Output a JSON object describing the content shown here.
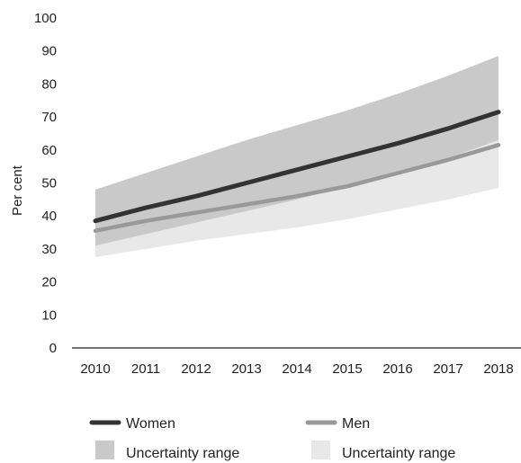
{
  "chart_data": {
    "type": "area",
    "title": "",
    "xlabel": "",
    "ylabel": "Per cent",
    "ylim": [
      0,
      100
    ],
    "yticks": [
      0,
      10,
      20,
      30,
      40,
      50,
      60,
      70,
      80,
      90,
      100
    ],
    "x": [
      2010,
      2011,
      2012,
      2013,
      2014,
      2015,
      2016,
      2017,
      2018
    ],
    "x_labels": [
      "2010",
      "2011",
      "2012",
      "2013",
      "2014",
      "2015",
      "2016",
      "2017",
      "2018"
    ],
    "grid": false,
    "legend_position": "bottom",
    "series": [
      {
        "name": "Women",
        "kind": "line",
        "color": "#333333",
        "values": [
          38.5,
          42.5,
          46,
          50,
          54,
          58,
          62,
          66.5,
          71.5
        ]
      },
      {
        "name": "Men",
        "kind": "line",
        "color": "#999999",
        "values": [
          35.5,
          38.5,
          41,
          43.5,
          46,
          49,
          53,
          57,
          61.5
        ]
      }
    ],
    "bands": [
      {
        "name": "Uncertainty range",
        "for": "Women",
        "color": "#c9c9c9",
        "lower": [
          31,
          34.5,
          38,
          41.5,
          45,
          49,
          53,
          57.5,
          63
        ],
        "upper": [
          48,
          53,
          58,
          63,
          67.5,
          72,
          77,
          82.5,
          88.5
        ]
      },
      {
        "name": "Uncertainty range",
        "for": "Men",
        "color": "#e8e8e8",
        "lower": [
          27.5,
          30,
          32.5,
          34.5,
          36.5,
          39,
          42,
          45,
          48.5
        ],
        "upper": [
          45,
          48.5,
          52,
          55,
          58.5,
          62,
          67,
          72,
          78
        ]
      }
    ],
    "legend": [
      {
        "label": "Women",
        "swatch": "line",
        "color": "#333333"
      },
      {
        "label": "Men",
        "swatch": "line",
        "color": "#999999"
      },
      {
        "label": "Uncertainty range",
        "swatch": "box",
        "color": "#c9c9c9"
      },
      {
        "label": "Uncertainty range",
        "swatch": "box",
        "color": "#e8e8e8"
      }
    ]
  }
}
